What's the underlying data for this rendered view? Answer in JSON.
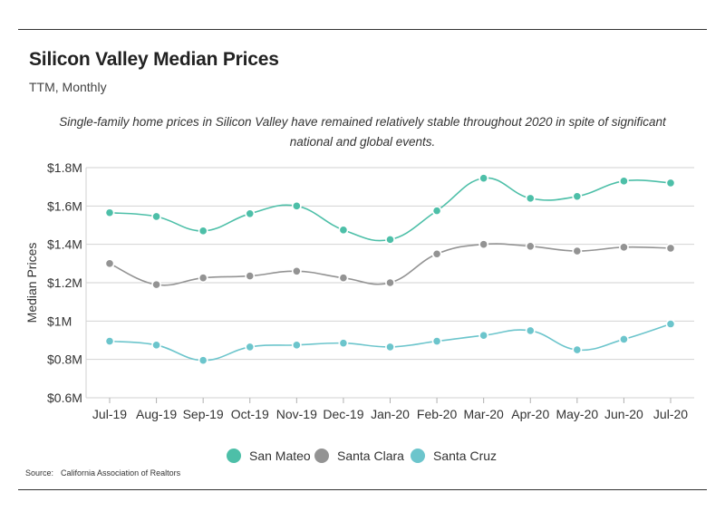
{
  "header": {
    "title": "Silicon Valley Median Prices",
    "subtitle": "TTM, Monthly",
    "caption": "Single-family home prices in Silicon Valley have remained relatively stable throughout 2020 in spite of significant national and global events."
  },
  "footer": {
    "source_label": "Source:",
    "source_text": "California Association of Realtors"
  },
  "chart_data": {
    "type": "line",
    "title": "Silicon Valley Median Prices",
    "subtitle": "TTM, Monthly",
    "ylabel": "Median Prices",
    "xlabel": "",
    "categories": [
      "Jul-19",
      "Aug-19",
      "Sep-19",
      "Oct-19",
      "Nov-19",
      "Dec-19",
      "Jan-20",
      "Feb-20",
      "Mar-20",
      "Apr-20",
      "May-20",
      "Jun-20",
      "Jul-20"
    ],
    "ylim": [
      0.6,
      1.8
    ],
    "yticks": [
      0.6,
      0.8,
      1.0,
      1.2,
      1.4,
      1.6,
      1.8
    ],
    "ytick_labels": [
      "$0.6M",
      "$0.8M",
      "$1M",
      "$1.2M",
      "$1.4M",
      "$1.6M",
      "$1.8M"
    ],
    "grid": "horizontal",
    "legend_position": "bottom-center",
    "series": [
      {
        "name": "San Mateo",
        "color": "#4dbfa8",
        "values": [
          1.565,
          1.545,
          1.47,
          1.56,
          1.6,
          1.475,
          1.425,
          1.575,
          1.745,
          1.64,
          1.65,
          1.73,
          1.72
        ]
      },
      {
        "name": "Santa Clara",
        "color": "#939393",
        "values": [
          1.3,
          1.19,
          1.225,
          1.235,
          1.26,
          1.225,
          1.2,
          1.35,
          1.4,
          1.39,
          1.365,
          1.385,
          1.38
        ]
      },
      {
        "name": "Santa Cruz",
        "color": "#6cc5cc",
        "values": [
          0.895,
          0.875,
          0.795,
          0.865,
          0.875,
          0.885,
          0.865,
          0.895,
          0.925,
          0.95,
          0.85,
          0.905,
          0.985
        ]
      }
    ]
  }
}
